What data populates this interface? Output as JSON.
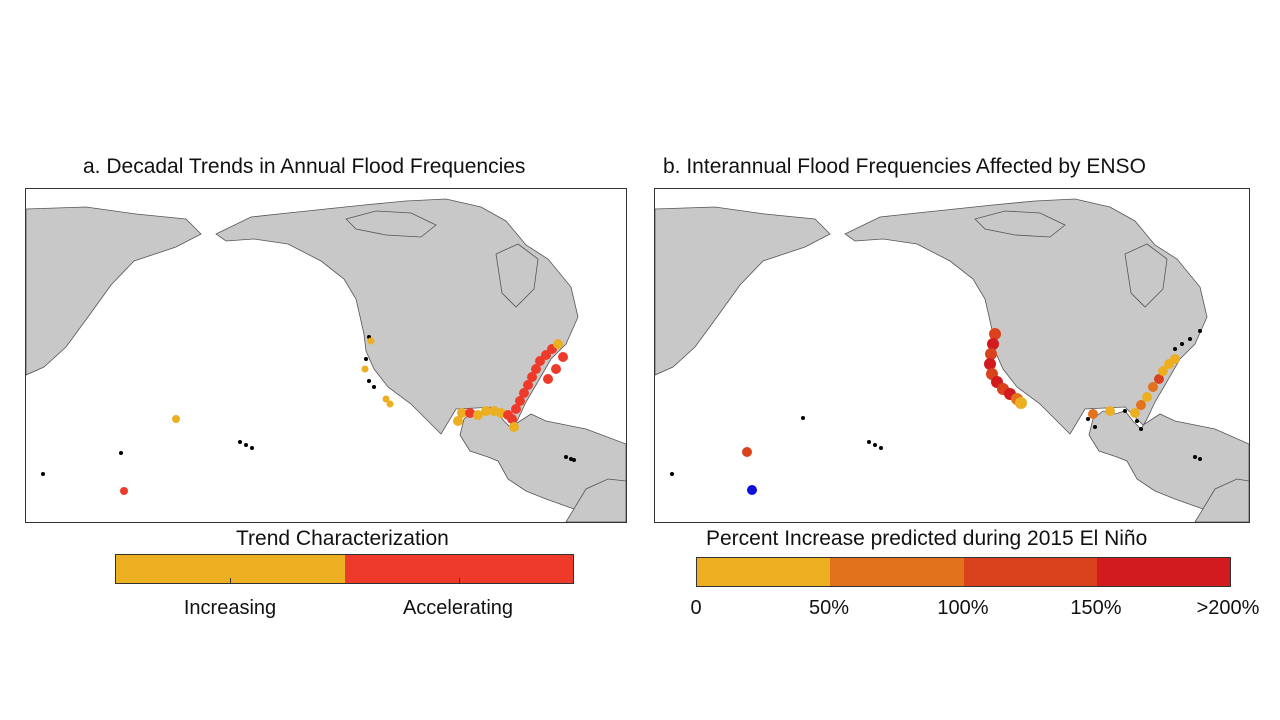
{
  "panel_a": {
    "title": "a. Decadal Trends in Annual Flood Frequencies",
    "legend_title": "Trend Characterization",
    "legend_items": [
      {
        "label": "Increasing",
        "color": "#ecaf22"
      },
      {
        "label": "Accelerating",
        "color": "#ee3a2b"
      }
    ]
  },
  "panel_b": {
    "title": "b. Interannual Flood Frequencies Affected by ENSO",
    "legend_title": "Percent Increase predicted during 2015 El Niño",
    "legend_colors": [
      "#ecaf22",
      "#e3721c",
      "#d9421c",
      "#d21b1e"
    ],
    "tick_labels": [
      "0",
      "50%",
      "100%",
      "150%",
      ">200%"
    ]
  },
  "colors": {
    "land": "#c8c8c8",
    "coastline": "#555555",
    "no_data": "#000000",
    "negative": "#1010dd"
  }
}
